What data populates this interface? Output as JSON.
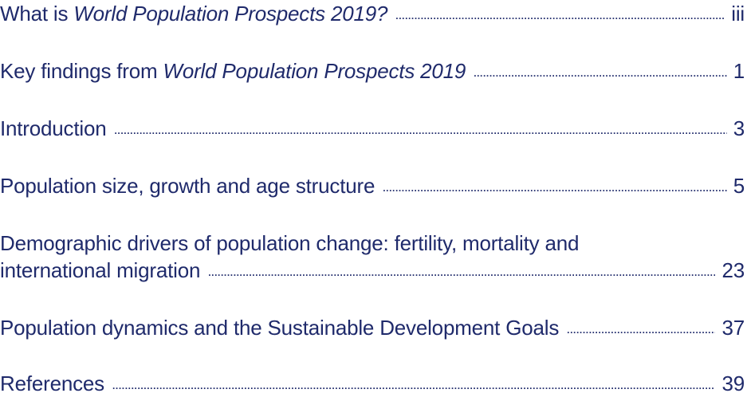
{
  "toc": {
    "entries": [
      {
        "title_prefix": "What is ",
        "title_italic": "World Population Prospects 2019?",
        "title_suffix": "",
        "page": "iii"
      },
      {
        "title_prefix": "Key findings from ",
        "title_italic": "World Population Prospects 2019",
        "title_suffix": "",
        "page": "1"
      },
      {
        "title_prefix": "Introduction",
        "title_italic": "",
        "title_suffix": "",
        "page": "3"
      },
      {
        "title_prefix": "Population size, growth and age structure",
        "title_italic": "",
        "title_suffix": "",
        "page": "5"
      },
      {
        "title_line1": "Demographic drivers of population change: fertility, mortality and",
        "title_prefix": "international migration",
        "title_italic": "",
        "title_suffix": "",
        "page": "23"
      },
      {
        "title_prefix": "Population dynamics and the Sustainable Development Goals",
        "title_italic": "",
        "title_suffix": "",
        "page": "37"
      },
      {
        "title_prefix": "References",
        "title_italic": "",
        "title_suffix": "",
        "page": "39"
      }
    ]
  },
  "colors": {
    "text": "#1f2a6b"
  }
}
